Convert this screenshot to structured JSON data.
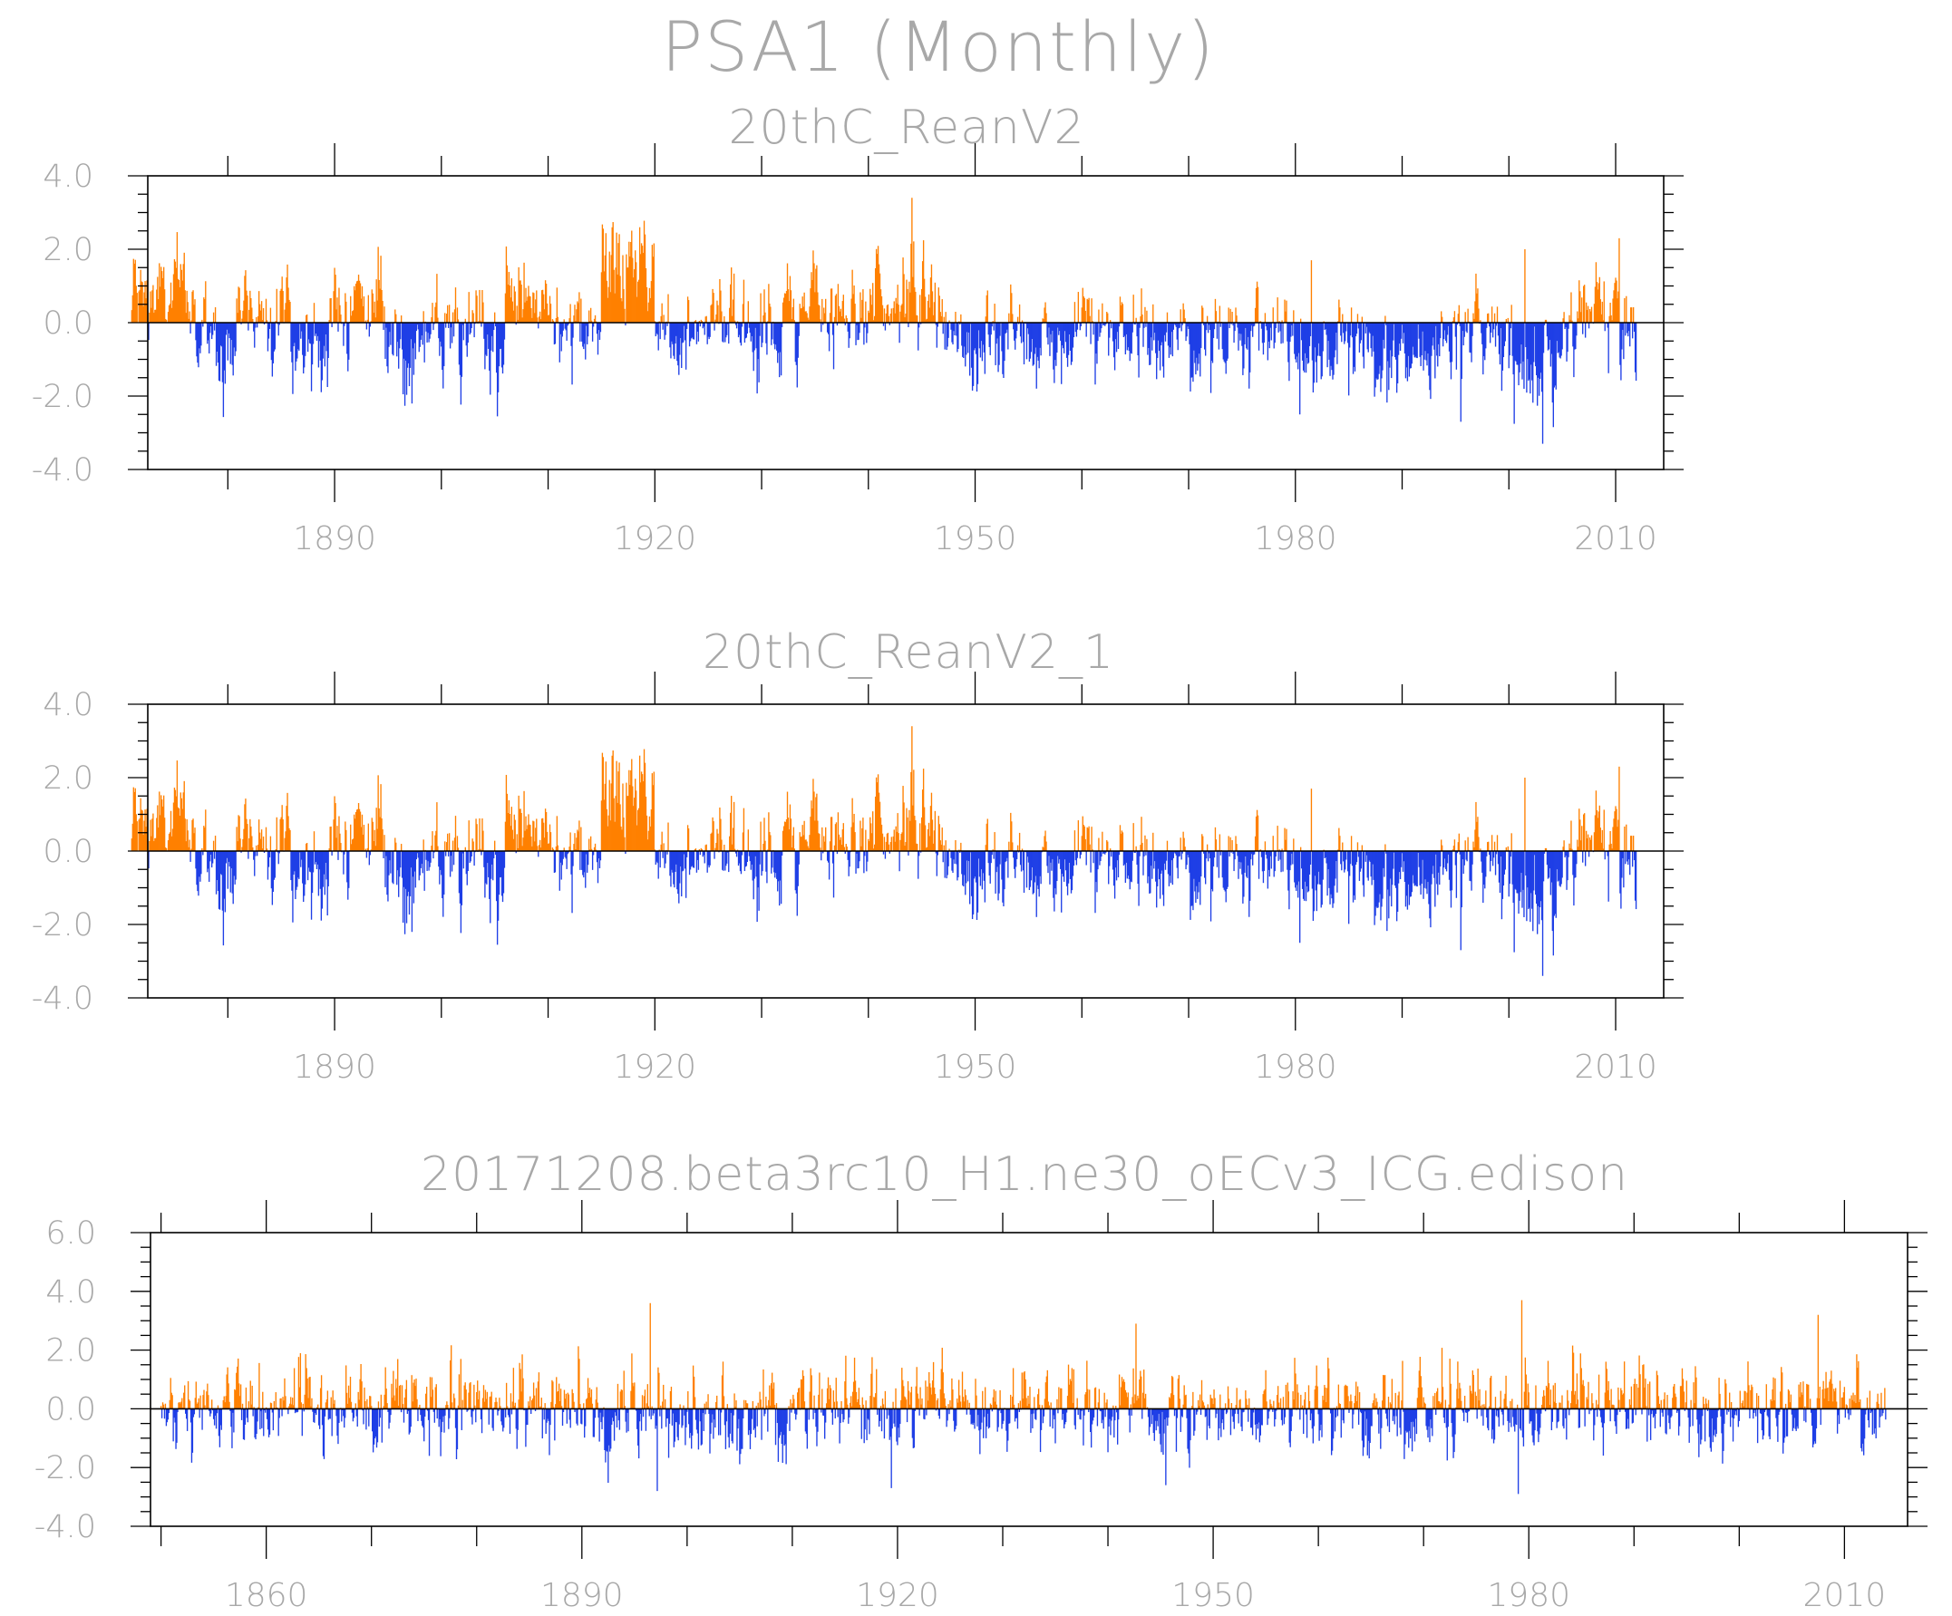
{
  "figure_title": "PSA1 (Monthly)",
  "colors": {
    "positive": "#ff8000",
    "negative": "#1f3fe6",
    "text": "#a8a8a8",
    "axis": "#000000"
  },
  "chart_data": [
    {
      "type": "bar",
      "title": "20thC_ReanV2",
      "x_unit": "year",
      "xlim": [
        1872.5,
        2014.5
      ],
      "ylim": [
        -4.0,
        4.0
      ],
      "x_ticks": [
        "1890",
        "1920",
        "1950",
        "1980",
        "2010"
      ],
      "y_ticks": [
        "-4.0",
        "-2.0",
        "0.0",
        "2.0",
        "4.0"
      ],
      "colors": {
        "positive": "orange",
        "negative": "blue"
      },
      "start_year": 1871,
      "end_year": 2012,
      "segments": [
        {
          "from": 1871,
          "to": 1877,
          "mean": 0.7
        },
        {
          "from": 1877,
          "to": 1881,
          "mean": -0.4
        },
        {
          "from": 1881,
          "to": 1886,
          "mean": 0.45
        },
        {
          "from": 1886,
          "to": 1890,
          "mean": -0.55
        },
        {
          "from": 1890,
          "to": 1895,
          "mean": 0.55
        },
        {
          "from": 1895,
          "to": 1906,
          "mean": -0.55
        },
        {
          "from": 1906,
          "to": 1911,
          "mean": 0.55
        },
        {
          "from": 1911,
          "to": 1915,
          "mean": -0.5
        },
        {
          "from": 1915,
          "to": 1920,
          "mean": 1.6
        },
        {
          "from": 1920,
          "to": 1923,
          "mean": -0.3
        },
        {
          "from": 1923,
          "to": 1928,
          "mean": 0.25
        },
        {
          "from": 1928,
          "to": 1932,
          "mean": -0.3
        },
        {
          "from": 1932,
          "to": 1938,
          "mean": 0.35
        },
        {
          "from": 1938,
          "to": 1945,
          "mean": 0.7
        },
        {
          "from": 1945,
          "to": 1947,
          "mean": 0.5
        },
        {
          "from": 1947,
          "to": 1958,
          "mean": -0.55
        },
        {
          "from": 1958,
          "to": 1963,
          "mean": -0.2
        },
        {
          "from": 1963,
          "to": 1968,
          "mean": -0.55
        },
        {
          "from": 1968,
          "to": 1977,
          "mean": -0.4
        },
        {
          "from": 1977,
          "to": 1983,
          "mean": -0.55
        },
        {
          "from": 1983,
          "to": 1986,
          "mean": -0.2
        },
        {
          "from": 1986,
          "to": 1994,
          "mean": -0.7
        },
        {
          "from": 1994,
          "to": 2000,
          "mean": -0.1
        },
        {
          "from": 2000,
          "to": 2007,
          "mean": -0.8
        },
        {
          "from": 2007,
          "to": 2012,
          "mean": 0.1
        }
      ],
      "noise_sd": 0.65,
      "extremes": [
        {
          "year": 1944.1,
          "value": 3.4
        },
        {
          "year": 2003.2,
          "value": -3.3
        },
        {
          "year": 1980.4,
          "value": -2.5
        },
        {
          "year": 1995.5,
          "value": -2.7
        },
        {
          "year": 1918.6,
          "value": 2.6
        },
        {
          "year": 1981.5,
          "value": 1.7
        },
        {
          "year": 2001.5,
          "value": 2.0
        },
        {
          "year": 2010.3,
          "value": 2.3
        }
      ]
    },
    {
      "type": "bar",
      "title": "20thC_ReanV2_1",
      "x_unit": "year",
      "xlim": [
        1872.5,
        2014.5
      ],
      "ylim": [
        -4.0,
        4.0
      ],
      "x_ticks": [
        "1890",
        "1920",
        "1950",
        "1980",
        "2010"
      ],
      "y_ticks": [
        "-4.0",
        "-2.0",
        "0.0",
        "2.0",
        "4.0"
      ],
      "colors": {
        "positive": "orange",
        "negative": "blue"
      },
      "start_year": 1871,
      "end_year": 2012,
      "segments": [
        {
          "from": 1871,
          "to": 1877,
          "mean": 0.7
        },
        {
          "from": 1877,
          "to": 1881,
          "mean": -0.4
        },
        {
          "from": 1881,
          "to": 1886,
          "mean": 0.45
        },
        {
          "from": 1886,
          "to": 1890,
          "mean": -0.55
        },
        {
          "from": 1890,
          "to": 1895,
          "mean": 0.55
        },
        {
          "from": 1895,
          "to": 1906,
          "mean": -0.55
        },
        {
          "from": 1906,
          "to": 1911,
          "mean": 0.55
        },
        {
          "from": 1911,
          "to": 1915,
          "mean": -0.5
        },
        {
          "from": 1915,
          "to": 1920,
          "mean": 1.6
        },
        {
          "from": 1920,
          "to": 1923,
          "mean": -0.3
        },
        {
          "from": 1923,
          "to": 1928,
          "mean": 0.25
        },
        {
          "from": 1928,
          "to": 1932,
          "mean": -0.3
        },
        {
          "from": 1932,
          "to": 1938,
          "mean": 0.35
        },
        {
          "from": 1938,
          "to": 1945,
          "mean": 0.7
        },
        {
          "from": 1945,
          "to": 1947,
          "mean": 0.5
        },
        {
          "from": 1947,
          "to": 1958,
          "mean": -0.55
        },
        {
          "from": 1958,
          "to": 1963,
          "mean": -0.2
        },
        {
          "from": 1963,
          "to": 1968,
          "mean": -0.55
        },
        {
          "from": 1968,
          "to": 1977,
          "mean": -0.4
        },
        {
          "from": 1977,
          "to": 1983,
          "mean": -0.55
        },
        {
          "from": 1983,
          "to": 1986,
          "mean": -0.2
        },
        {
          "from": 1986,
          "to": 1994,
          "mean": -0.7
        },
        {
          "from": 1994,
          "to": 2000,
          "mean": -0.1
        },
        {
          "from": 2000,
          "to": 2007,
          "mean": -0.8
        },
        {
          "from": 2007,
          "to": 2012,
          "mean": 0.1
        }
      ],
      "noise_sd": 0.65,
      "extremes": [
        {
          "year": 1944.1,
          "value": 3.4
        },
        {
          "year": 2003.2,
          "value": -3.4
        },
        {
          "year": 1980.4,
          "value": -2.5
        },
        {
          "year": 1995.5,
          "value": -2.7
        },
        {
          "year": 1918.6,
          "value": 2.6
        },
        {
          "year": 1981.5,
          "value": 1.7
        },
        {
          "year": 2001.5,
          "value": 2.0
        },
        {
          "year": 2010.3,
          "value": 2.3
        }
      ]
    },
    {
      "type": "bar",
      "title": "20171208.beta3rc10_H1.ne30_oECv3_ICG.edison",
      "x_unit": "year",
      "xlim": [
        1849,
        2016
      ],
      "ylim": [
        -4.0,
        6.0
      ],
      "x_ticks": [
        "1860",
        "1890",
        "1920",
        "1950",
        "1980",
        "2010"
      ],
      "y_ticks": [
        "-4.0",
        "-2.0",
        "0.0",
        "2.0",
        "4.0",
        "6.0"
      ],
      "colors": {
        "positive": "orange",
        "negative": "blue"
      },
      "start_year": 1850,
      "end_year": 2014,
      "segments": [
        {
          "from": 1850,
          "to": 2014,
          "mean": 0.0
        }
      ],
      "noise_sd": 0.75,
      "extremes": [
        {
          "year": 1896.5,
          "value": 3.6
        },
        {
          "year": 1979.3,
          "value": 3.7
        },
        {
          "year": 1942.7,
          "value": 2.9
        },
        {
          "year": 2007.5,
          "value": 3.2
        },
        {
          "year": 1897.2,
          "value": -2.8
        },
        {
          "year": 1979.0,
          "value": -2.9
        },
        {
          "year": 1945.5,
          "value": -2.6
        },
        {
          "year": 1919.4,
          "value": -2.7
        }
      ]
    }
  ]
}
